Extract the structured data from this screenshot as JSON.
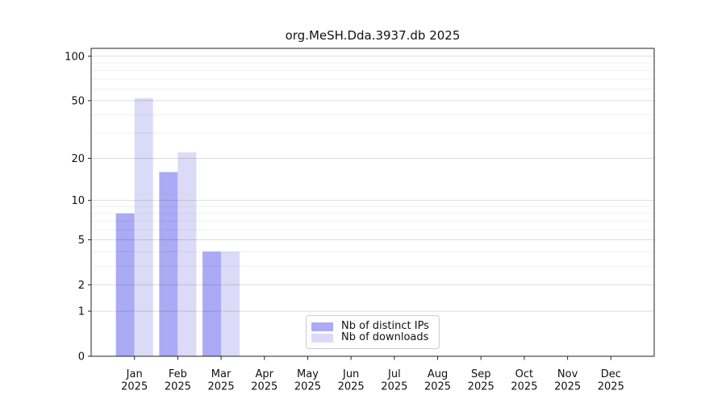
{
  "title": "org.MeSH.Dda.3937.db 2025",
  "chart_data": {
    "type": "bar",
    "title": "org.MeSH.Dda.3937.db 2025",
    "categories": [
      "Jan\n2025",
      "Feb\n2025",
      "Mar\n2025",
      "Apr\n2025",
      "May\n2025",
      "Jun\n2025",
      "Jul\n2025",
      "Aug\n2025",
      "Sep\n2025",
      "Oct\n2025",
      "Nov\n2025",
      "Dec\n2025"
    ],
    "series": [
      {
        "name": "Nb of distinct IPs",
        "color": "#aaaaf5",
        "values": [
          8,
          16,
          4,
          0,
          0,
          0,
          0,
          0,
          0,
          0,
          0,
          0
        ]
      },
      {
        "name": "Nb of downloads",
        "color": "#dbdbf8",
        "values": [
          52,
          22,
          4,
          0,
          0,
          0,
          0,
          0,
          0,
          0,
          0,
          0
        ]
      }
    ],
    "xlabel": "",
    "ylabel": "",
    "yscale": "log1p",
    "yticks": [
      0,
      1,
      2,
      5,
      10,
      20,
      50,
      100
    ],
    "minor_grid_values": [
      3,
      4,
      6,
      7,
      8,
      9,
      30,
      40,
      60,
      70,
      80,
      90
    ],
    "ylim": [
      0,
      113
    ],
    "grid": "horizontal",
    "legend_position": "lower-center-inside",
    "colors": {
      "spine": "#222222",
      "tick_label": "#111111",
      "major_grid": "rgba(0,0,0,0.14)",
      "minor_grid": "rgba(0,0,0,0.06)"
    }
  }
}
